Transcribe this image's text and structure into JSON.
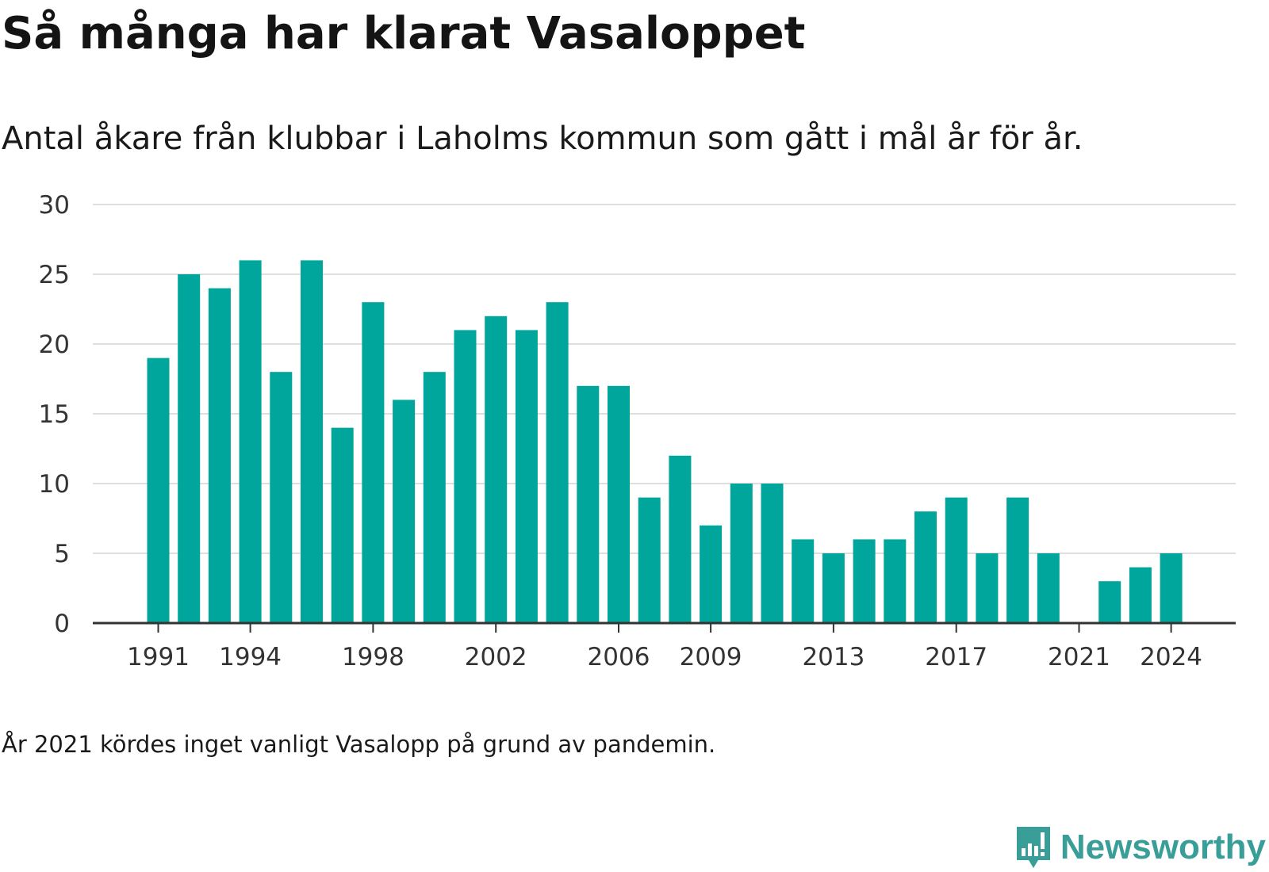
{
  "header": {
    "title": "Så många har klarat Vasaloppet",
    "subtitle": "Antal åkare från klubbar i Laholms kommun som gått i mål år för år."
  },
  "footer": {
    "note": "År 2021 kördes inget vanligt Vasalopp på grund av pandemin.",
    "brand": "Newsworthy",
    "brand_icon": "bar-chart-speech-bubble-icon"
  },
  "colors": {
    "bar": "#00A59B",
    "brand": "#3A9E98",
    "grid": "#dedede",
    "axis": "#333333"
  },
  "chart_data": {
    "type": "bar",
    "categories": [
      "1991",
      "1992",
      "1993",
      "1994",
      "1995",
      "1996",
      "1997",
      "1998",
      "1999",
      "2000",
      "2001",
      "2002",
      "2003",
      "2004",
      "2005",
      "2006",
      "2007",
      "2008",
      "2009",
      "2010",
      "2011",
      "2012",
      "2013",
      "2014",
      "2015",
      "2016",
      "2017",
      "2018",
      "2019",
      "2020",
      "2021",
      "2022",
      "2023",
      "2024"
    ],
    "values": [
      19,
      25,
      24,
      26,
      18,
      26,
      14,
      23,
      16,
      18,
      21,
      22,
      21,
      23,
      17,
      17,
      9,
      12,
      7,
      10,
      10,
      6,
      5,
      6,
      6,
      8,
      9,
      5,
      9,
      5,
      0,
      3,
      4,
      5
    ],
    "x_tick_labels": [
      "1991",
      "1994",
      "1998",
      "2002",
      "2006",
      "2009",
      "2013",
      "2017",
      "2021",
      "2024"
    ],
    "y_ticks": [
      0,
      5,
      10,
      15,
      20,
      25,
      30
    ],
    "ylim": [
      0,
      30
    ],
    "grid": true,
    "legend": "none"
  }
}
